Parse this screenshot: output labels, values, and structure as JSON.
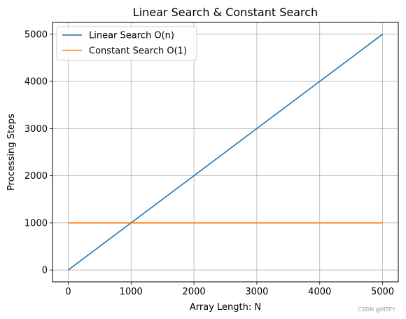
{
  "chart_data": {
    "type": "line",
    "title": "Linear Search & Constant Search",
    "xlabel": "Array Length: N",
    "ylabel": "Processing Steps",
    "xlim": [
      -250,
      5250
    ],
    "ylim": [
      -250,
      5250
    ],
    "xticks": [
      0,
      1000,
      2000,
      3000,
      4000,
      5000
    ],
    "yticks": [
      0,
      1000,
      2000,
      3000,
      4000,
      5000
    ],
    "grid": true,
    "legend_position": "top-left",
    "series": [
      {
        "name": "Linear Search O(n)",
        "color": "#1f77b4",
        "x": [
          0,
          5000
        ],
        "y": [
          0,
          5000
        ]
      },
      {
        "name": "Constant Search O(1)",
        "color": "#ff7f0e",
        "x": [
          0,
          5000
        ],
        "y": [
          1000,
          1000
        ]
      }
    ]
  },
  "watermark": "CSDN @NTFY"
}
